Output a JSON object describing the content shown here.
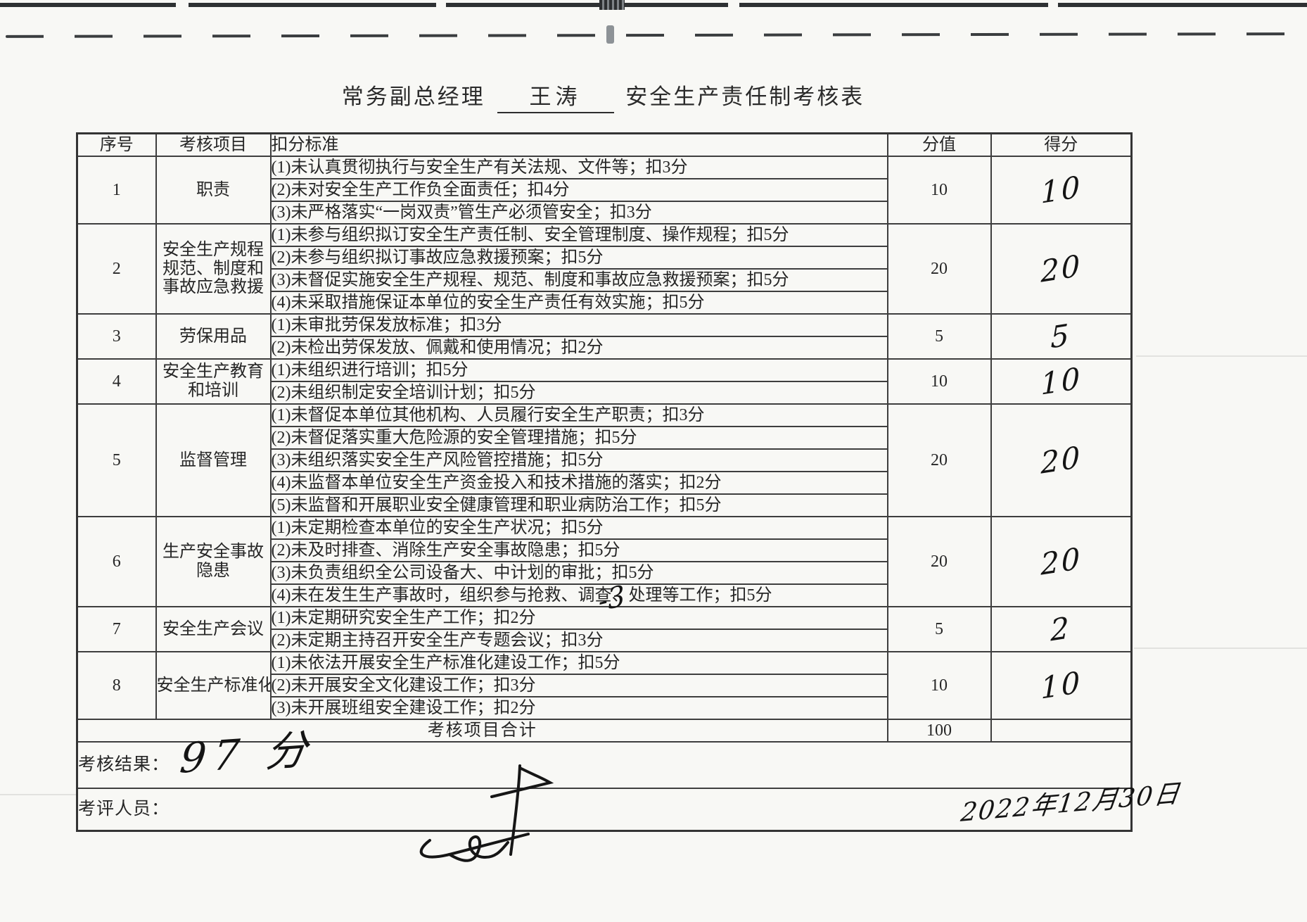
{
  "title": {
    "prefix": "常务副总经理",
    "name": "王涛",
    "suffix": "安全生产责任制考核表"
  },
  "table": {
    "headers": {
      "no": "序号",
      "item": "考核项目",
      "criteria": "扣分标准",
      "value": "分值",
      "score": "得分"
    },
    "rows": [
      {
        "no": "1",
        "item": "职责",
        "criteria": [
          "(1)未认真贯彻执行与安全生产有关法规、文件等；扣3分",
          "(2)未对安全生产工作负全面责任；扣4分",
          "(3)未严格落实“一岗双责”管生产必须管安全；扣3分"
        ],
        "value": "10",
        "score": "10"
      },
      {
        "no": "2",
        "item": "安全生产规程规范、制度和事故应急救援",
        "criteria": [
          "(1)未参与组织拟订安全生产责任制、安全管理制度、操作规程；扣5分",
          "(2)未参与组织拟订事故应急救援预案；扣5分",
          "(3)未督促实施安全生产规程、规范、制度和事故应急救援预案；扣5分",
          "(4)未采取措施保证本单位的安全生产责任有效实施；扣5分"
        ],
        "value": "20",
        "score": "20"
      },
      {
        "no": "3",
        "item": "劳保用品",
        "criteria": [
          "(1)未审批劳保发放标准；扣3分",
          "(2)未检出劳保发放、佩戴和使用情况；扣2分"
        ],
        "value": "5",
        "score": "5"
      },
      {
        "no": "4",
        "item": "安全生产教育和培训",
        "criteria": [
          "(1)未组织进行培训；扣5分",
          "(2)未组织制定安全培训计划；扣5分"
        ],
        "value": "10",
        "score": "10"
      },
      {
        "no": "5",
        "item": "监督管理",
        "criteria": [
          "(1)未督促本单位其他机构、人员履行安全生产职责；扣3分",
          "(2)未督促落实重大危险源的安全管理措施；扣5分",
          "(3)未组织落实安全生产风险管控措施；扣5分",
          "(4)未监督本单位安全生产资金投入和技术措施的落实；扣2分",
          "(5)未监督和开展职业安全健康管理和职业病防治工作；扣5分"
        ],
        "value": "20",
        "score": "20"
      },
      {
        "no": "6",
        "item": "生产安全事故隐患",
        "criteria": [
          "(1)未定期检查本单位的安全生产状况；扣5分",
          "(2)未及时排查、消除生产安全事故隐患；扣5分",
          "(3)未负责组织全公司设备大、中计划的审批；扣5分",
          "(4)未在发生生产事故时，组织参与抢救、调查、处理等工作；扣5分"
        ],
        "value": "20",
        "score": "20"
      },
      {
        "no": "7",
        "item": "安全生产会议",
        "criteria": [
          "(1)未定期研究安全生产工作；扣2分",
          "(2)未定期主持召开安全生产专题会议；扣3分"
        ],
        "value": "5",
        "score": "2"
      },
      {
        "no": "8",
        "item": "安全生产标准化",
        "criteria": [
          "(1)未依法开展安全生产标准化建设工作；扣5分",
          "(2)未开展安全文化建设工作；扣3分",
          "(3)未开展班组安全建设工作；扣2分"
        ],
        "value": "10",
        "score": "10"
      }
    ],
    "total": {
      "label": "考核项目合计",
      "value": "100",
      "score": ""
    }
  },
  "footer": {
    "result_label": "考核结果：",
    "result_value": "97 分",
    "assessor_label": "考评人员：",
    "date": "2022年12月30日"
  },
  "annotations": {
    "row7_deduction": "-3"
  },
  "colors": {
    "paper": "#f8f8f5",
    "ink": "#262626",
    "border": "#3e3e3e",
    "handwriting": "#141414"
  }
}
